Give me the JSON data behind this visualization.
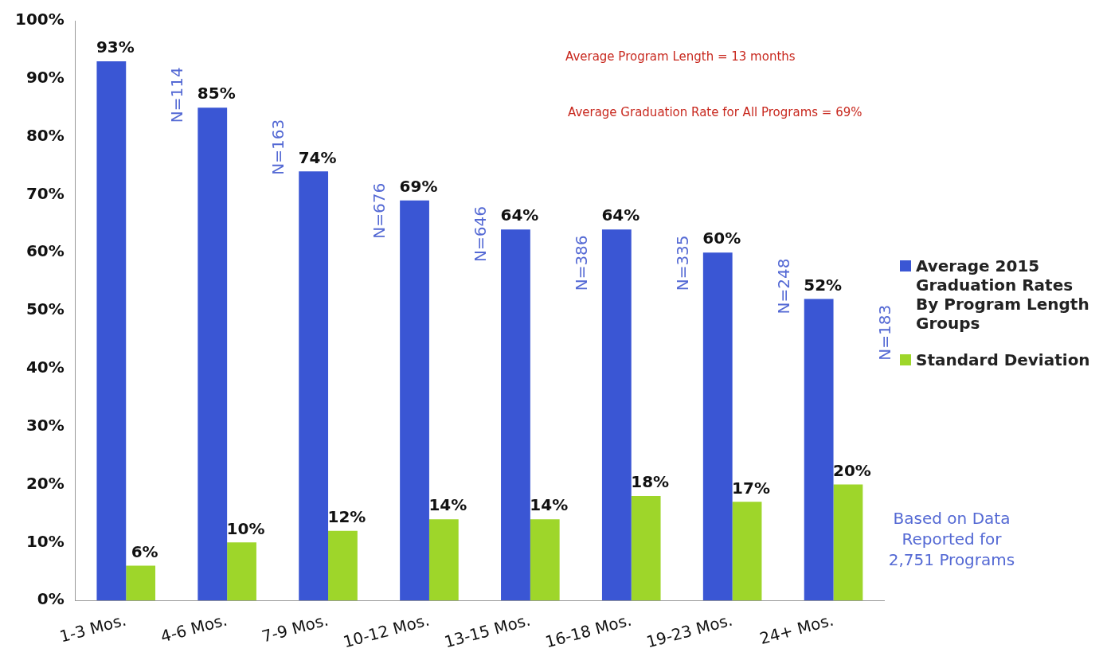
{
  "chart_data": {
    "type": "bar",
    "categories": [
      "1-3 Mos.",
      "4-6 Mos.",
      "7-9 Mos.",
      "10-12 Mos.",
      "13-15 Mos.",
      "16-18 Mos.",
      "19-23 Mos.",
      "24+ Mos."
    ],
    "series": [
      {
        "name": "Average 2015 Graduation Rates By Program Length Groups",
        "color": "#3a56d4",
        "values": [
          93,
          85,
          74,
          69,
          64,
          64,
          60,
          52
        ],
        "value_labels": [
          "93%",
          "85%",
          "74%",
          "69%",
          "64%",
          "64%",
          "60%",
          "52%"
        ]
      },
      {
        "name": "Standard Deviation",
        "color": "#9ed62a",
        "values": [
          6,
          10,
          12,
          14,
          14,
          18,
          17,
          20
        ],
        "value_labels": [
          "6%",
          "10%",
          "12%",
          "14%",
          "14%",
          "18%",
          "17%",
          "20%"
        ]
      }
    ],
    "ylim": [
      0,
      100
    ],
    "yticks": [
      {
        "value": 0,
        "label": "0%"
      },
      {
        "value": 10,
        "label": "10%"
      },
      {
        "value": 20,
        "label": "20%"
      },
      {
        "value": 30,
        "label": "30%"
      },
      {
        "value": 40,
        "label": "40%"
      },
      {
        "value": 50,
        "label": "50%"
      },
      {
        "value": 60,
        "label": "60%"
      },
      {
        "value": 70,
        "label": "70%"
      },
      {
        "value": 80,
        "label": "80%"
      },
      {
        "value": 90,
        "label": "90%"
      },
      {
        "value": 100,
        "label": "100%"
      }
    ],
    "grid": false,
    "legend": "right",
    "annotations": [
      "Average Program Length = 13 months",
      "Average Graduation Rate for All Programs = 69%",
      "Based on Data Reported for 2,751 Programs",
      {
        "text": "N=114",
        "x": "1-3 Mos.",
        "y": 92
      },
      {
        "text": "N=163",
        "x": "4-6 Mos.",
        "y": 83
      },
      {
        "text": "N=676",
        "x": "7-9 Mos.",
        "y": 72
      },
      {
        "text": "N=646",
        "x": "10-12 Mos.",
        "y": 68
      },
      {
        "text": "N=386",
        "x": "13-15 Mos.",
        "y": 63
      },
      {
        "text": "N=335",
        "x": "16-18 Mos.",
        "y": 63
      },
      {
        "text": "N=248",
        "x": "19-23 Mos.",
        "y": 59
      },
      {
        "text": "N=183",
        "x": "24+ Mos.",
        "y": 51
      }
    ]
  }
}
